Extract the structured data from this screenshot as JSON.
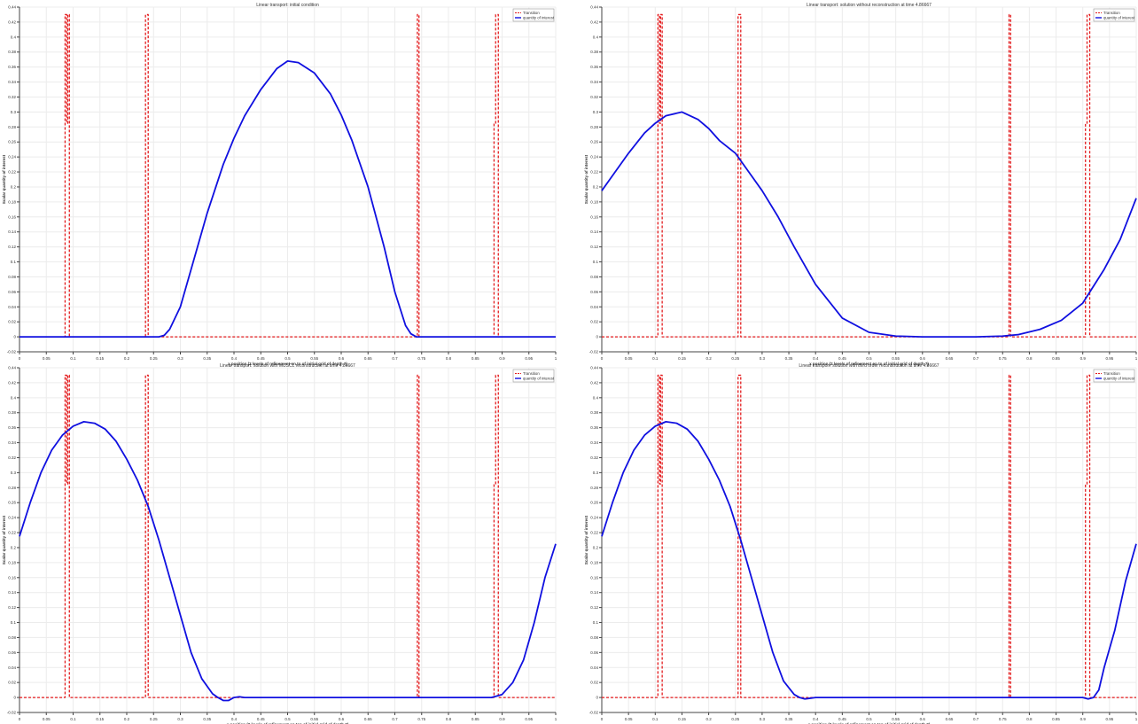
{
  "colors": {
    "transition": "#e31a1c",
    "quantity": "#1010e0",
    "grid": "#ececec",
    "axis": "#444444",
    "text": "#333333"
  },
  "legend_labels": [
    "Transition",
    "quantity of interest"
  ],
  "chart_data": [
    {
      "type": "line",
      "title": "Linear transport: initial condition",
      "xlabel": "x position (2 levels of refinement on to of initial grid of depth 7)",
      "ylabel": "Scalar quantity of interest",
      "xlim": [
        0,
        1
      ],
      "ylim": [
        -0.02,
        0.44
      ],
      "x_ticks": [
        "0",
        "0.05",
        "0.1",
        "0.15",
        "0.2",
        "0.25",
        "0.3",
        "0.35",
        "0.4",
        "0.45",
        "0.5",
        "0.55",
        "0.6",
        "0.65",
        "0.7",
        "0.75",
        "0.8",
        "0.85",
        "0.9",
        "0.95",
        "1"
      ],
      "y_ticks": [
        "-0.02",
        "0",
        "0.02",
        "0.04",
        "0.06",
        "0.08",
        "0.1",
        "0.12",
        "0.14",
        "0.16",
        "0.18",
        "0.2",
        "0.22",
        "0.24",
        "0.26",
        "0.28",
        "0.3",
        "0.32",
        "0.34",
        "0.36",
        "0.38",
        "0.4",
        "0.42",
        "0.44"
      ],
      "grid": true,
      "legend_position": "top-right",
      "series": [
        {
          "name": "Transition",
          "style": "dashed",
          "x": [
            0,
            0.085,
            0.085,
            0.088,
            0.088,
            0.09,
            0.09,
            0.093,
            0.093,
            0.235,
            0.235,
            0.238,
            0.238,
            0.24,
            0.24,
            0.742,
            0.742,
            0.745,
            0.745,
            0.885,
            0.885,
            0.888,
            0.888,
            0.89,
            0.89,
            0.893,
            0.893,
            1
          ],
          "y": [
            0,
            0,
            0.43,
            0.43,
            0.285,
            0.285,
            0.43,
            0.43,
            0,
            0,
            0.43,
            0.43,
            0.43,
            0.43,
            0,
            0,
            0.43,
            0.43,
            0,
            0,
            0.285,
            0.285,
            0.43,
            0.43,
            0.43,
            0.43,
            0,
            0
          ]
        },
        {
          "name": "quantity of interest",
          "style": "solid",
          "x": [
            0,
            0.26,
            0.27,
            0.28,
            0.3,
            0.32,
            0.35,
            0.38,
            0.4,
            0.42,
            0.45,
            0.48,
            0.5,
            0.52,
            0.55,
            0.58,
            0.6,
            0.62,
            0.65,
            0.68,
            0.7,
            0.72,
            0.73,
            0.74,
            0.75,
            1
          ],
          "y": [
            0,
            0,
            0.002,
            0.01,
            0.04,
            0.09,
            0.165,
            0.23,
            0.265,
            0.295,
            0.33,
            0.358,
            0.368,
            0.366,
            0.352,
            0.324,
            0.296,
            0.262,
            0.2,
            0.12,
            0.06,
            0.015,
            0.004,
            0,
            0,
            0
          ]
        }
      ]
    },
    {
      "type": "line",
      "title": "Linear transport: solution without reconstruction at time 4.86667",
      "xlabel": "x position (2 levels of refinement on to of initial grid of depth 7)",
      "ylabel": "Scalar quantity of interest",
      "xlim": [
        0,
        1
      ],
      "ylim": [
        -0.02,
        0.44
      ],
      "x_ticks": [
        "0",
        "0.05",
        "0.1",
        "0.15",
        "0.2",
        "0.25",
        "0.3",
        "0.35",
        "0.4",
        "0.45",
        "0.5",
        "0.55",
        "0.6",
        "0.65",
        "0.7",
        "0.75",
        "0.8",
        "0.85",
        "0.9",
        "0.95",
        "1"
      ],
      "y_ticks": [
        "-0.02",
        "0",
        "0.02",
        "0.04",
        "0.06",
        "0.08",
        "0.1",
        "0.12",
        "0.14",
        "0.16",
        "0.18",
        "0.2",
        "0.22",
        "0.24",
        "0.26",
        "0.28",
        "0.3",
        "0.32",
        "0.34",
        "0.36",
        "0.38",
        "0.4",
        "0.42",
        "0.44"
      ],
      "grid": true,
      "legend_position": "top-right",
      "series": [
        {
          "name": "Transition",
          "style": "dashed",
          "x": [
            0,
            0.105,
            0.105,
            0.108,
            0.108,
            0.11,
            0.11,
            0.113,
            0.113,
            0.255,
            0.255,
            0.258,
            0.258,
            0.26,
            0.26,
            0.762,
            0.762,
            0.765,
            0.765,
            0.905,
            0.905,
            0.908,
            0.908,
            0.91,
            0.91,
            0.913,
            0.913,
            1
          ],
          "y": [
            0,
            0,
            0.43,
            0.43,
            0.285,
            0.285,
            0.43,
            0.43,
            0,
            0,
            0.43,
            0.43,
            0.43,
            0.43,
            0,
            0,
            0.43,
            0.43,
            0,
            0,
            0.285,
            0.285,
            0.43,
            0.43,
            0.43,
            0.43,
            0,
            0
          ]
        },
        {
          "name": "quantity of interest",
          "style": "solid",
          "x": [
            0,
            0.02,
            0.05,
            0.08,
            0.1,
            0.12,
            0.15,
            0.18,
            0.2,
            0.22,
            0.25,
            0.28,
            0.3,
            0.33,
            0.36,
            0.4,
            0.45,
            0.5,
            0.55,
            0.6,
            0.65,
            0.7,
            0.75,
            0.78,
            0.82,
            0.86,
            0.9,
            0.94,
            0.97,
            1
          ],
          "y": [
            0.195,
            0.215,
            0.245,
            0.272,
            0.285,
            0.295,
            0.3,
            0.29,
            0.278,
            0.262,
            0.245,
            0.215,
            0.195,
            0.16,
            0.12,
            0.07,
            0.025,
            0.006,
            0.001,
            0,
            0,
            0,
            0.001,
            0.003,
            0.01,
            0.022,
            0.045,
            0.09,
            0.13,
            0.185
          ]
        }
      ]
    },
    {
      "type": "line",
      "title": "Linear transport: solution with MUSCL reconstruction at time 4.86667",
      "xlabel": "x position (2 levels of refinement on top of initial grid of depth 7)",
      "ylabel": "Scalar quantity of interest",
      "xlim": [
        0,
        1
      ],
      "ylim": [
        -0.02,
        0.44
      ],
      "x_ticks": [
        "0",
        "0.05",
        "0.1",
        "0.15",
        "0.2",
        "0.25",
        "0.3",
        "0.35",
        "0.4",
        "0.45",
        "0.5",
        "0.55",
        "0.6",
        "0.65",
        "0.7",
        "0.75",
        "0.8",
        "0.85",
        "0.9",
        "0.95",
        "1"
      ],
      "y_ticks": [
        "-0.02",
        "0",
        "0.02",
        "0.04",
        "0.06",
        "0.08",
        "0.1",
        "0.12",
        "0.14",
        "0.16",
        "0.18",
        "0.2",
        "0.22",
        "0.24",
        "0.26",
        "0.28",
        "0.3",
        "0.32",
        "0.34",
        "0.36",
        "0.38",
        "0.4",
        "0.42",
        "0.44"
      ],
      "grid": true,
      "legend_position": "top-right",
      "series": [
        {
          "name": "Transition",
          "style": "dashed",
          "x": [
            0,
            0.085,
            0.085,
            0.088,
            0.088,
            0.09,
            0.09,
            0.093,
            0.093,
            0.235,
            0.235,
            0.238,
            0.238,
            0.24,
            0.24,
            0.742,
            0.742,
            0.745,
            0.745,
            0.885,
            0.885,
            0.888,
            0.888,
            0.89,
            0.89,
            0.893,
            0.893,
            1
          ],
          "y": [
            0,
            0,
            0.43,
            0.43,
            0.285,
            0.285,
            0.43,
            0.43,
            0,
            0,
            0.43,
            0.43,
            0.43,
            0.43,
            0,
            0,
            0.43,
            0.43,
            0,
            0,
            0.285,
            0.285,
            0.43,
            0.43,
            0.43,
            0.43,
            0,
            0
          ]
        },
        {
          "name": "quantity of interest",
          "style": "solid",
          "x": [
            0,
            0.02,
            0.04,
            0.06,
            0.08,
            0.1,
            0.12,
            0.14,
            0.16,
            0.18,
            0.2,
            0.22,
            0.24,
            0.26,
            0.28,
            0.3,
            0.32,
            0.34,
            0.36,
            0.37,
            0.38,
            0.39,
            0.4,
            0.41,
            0.42,
            0.44,
            0.46,
            0.5,
            0.6,
            0.7,
            0.8,
            0.88,
            0.9,
            0.92,
            0.94,
            0.96,
            0.98,
            1
          ],
          "y": [
            0.215,
            0.26,
            0.3,
            0.33,
            0.35,
            0.362,
            0.368,
            0.366,
            0.358,
            0.342,
            0.318,
            0.29,
            0.255,
            0.21,
            0.16,
            0.11,
            0.06,
            0.025,
            0.005,
            0,
            -0.004,
            -0.004,
            0,
            0.001,
            0,
            0,
            0,
            0,
            0,
            0,
            0,
            0,
            0.004,
            0.02,
            0.05,
            0.1,
            0.16,
            0.205
          ]
        }
      ]
    },
    {
      "type": "line",
      "title": "Linear transport: solution with third order reconstruction at time 4.86667",
      "xlabel": "x position (2 levels of refinement on top of initial grid of depth 7)",
      "ylabel": "Scalar quantity of interest",
      "xlim": [
        0,
        1
      ],
      "ylim": [
        -0.02,
        0.44
      ],
      "x_ticks": [
        "0",
        "0.05",
        "0.1",
        "0.15",
        "0.2",
        "0.25",
        "0.3",
        "0.35",
        "0.4",
        "0.45",
        "0.5",
        "0.55",
        "0.6",
        "0.65",
        "0.7",
        "0.75",
        "0.8",
        "0.85",
        "0.9",
        "0.95",
        "1"
      ],
      "y_ticks": [
        "-0.02",
        "0",
        "0.02",
        "0.04",
        "0.06",
        "0.08",
        "0.1",
        "0.12",
        "0.14",
        "0.16",
        "0.18",
        "0.2",
        "0.22",
        "0.24",
        "0.26",
        "0.28",
        "0.3",
        "0.32",
        "0.34",
        "0.36",
        "0.38",
        "0.4",
        "0.42",
        "0.44"
      ],
      "grid": true,
      "legend_position": "top-right",
      "series": [
        {
          "name": "Transition",
          "style": "dashed",
          "x": [
            0,
            0.105,
            0.105,
            0.108,
            0.108,
            0.11,
            0.11,
            0.113,
            0.113,
            0.255,
            0.255,
            0.258,
            0.258,
            0.26,
            0.26,
            0.762,
            0.762,
            0.765,
            0.765,
            0.905,
            0.905,
            0.908,
            0.908,
            0.91,
            0.91,
            0.913,
            0.913,
            1
          ],
          "y": [
            0,
            0,
            0.43,
            0.43,
            0.285,
            0.285,
            0.43,
            0.43,
            0,
            0,
            0.43,
            0.43,
            0.43,
            0.43,
            0,
            0,
            0.43,
            0.43,
            0,
            0,
            0.285,
            0.285,
            0.43,
            0.43,
            0.43,
            0.43,
            0,
            0
          ]
        },
        {
          "name": "quantity of interest",
          "style": "solid",
          "x": [
            0,
            0.02,
            0.04,
            0.06,
            0.08,
            0.1,
            0.12,
            0.14,
            0.16,
            0.18,
            0.2,
            0.22,
            0.24,
            0.26,
            0.28,
            0.3,
            0.32,
            0.34,
            0.36,
            0.37,
            0.38,
            0.39,
            0.4,
            0.42,
            0.5,
            0.6,
            0.7,
            0.8,
            0.9,
            0.91,
            0.92,
            0.93,
            0.94,
            0.96,
            0.98,
            1
          ],
          "y": [
            0.215,
            0.26,
            0.3,
            0.33,
            0.35,
            0.362,
            0.368,
            0.366,
            0.358,
            0.342,
            0.318,
            0.29,
            0.255,
            0.21,
            0.16,
            0.11,
            0.06,
            0.022,
            0.004,
            0,
            -0.002,
            -0.001,
            0,
            0,
            0,
            0,
            0,
            0,
            0,
            -0.002,
            0,
            0.01,
            0.04,
            0.09,
            0.155,
            0.205
          ]
        }
      ]
    }
  ]
}
